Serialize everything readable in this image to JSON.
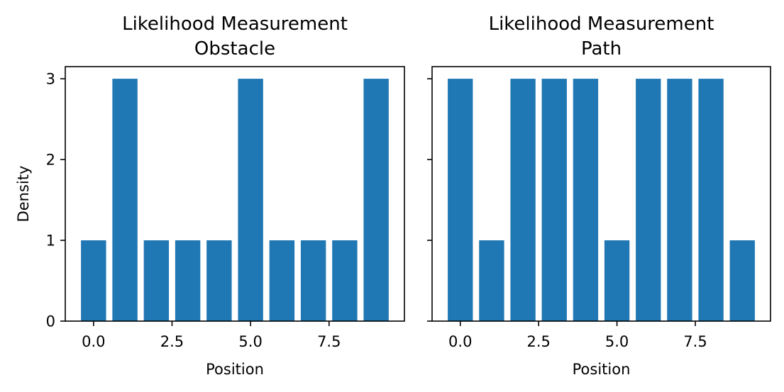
{
  "chart_data": [
    {
      "type": "bar",
      "title": "Likelihood Measurement\nObstacle",
      "xlabel": "Position",
      "ylabel": "Density",
      "x": [
        0,
        1,
        2,
        3,
        4,
        5,
        6,
        7,
        8,
        9
      ],
      "values": [
        1,
        3,
        1,
        1,
        1,
        3,
        1,
        1,
        1,
        3
      ],
      "xlim": [
        -0.9,
        9.9
      ],
      "ylim": [
        0,
        3.15
      ],
      "xticks": [
        0.0,
        2.5,
        5.0,
        7.5
      ],
      "xtick_labels": [
        "0.0",
        "2.5",
        "5.0",
        "7.5"
      ],
      "yticks": [
        0,
        1,
        2,
        3
      ],
      "ytick_labels": [
        "0",
        "1",
        "2",
        "3"
      ],
      "color": "#1f77b4",
      "grid": false
    },
    {
      "type": "bar",
      "title": "Likelihood Measurement\nPath",
      "xlabel": "Position",
      "ylabel": "",
      "x": [
        0,
        1,
        2,
        3,
        4,
        5,
        6,
        7,
        8,
        9
      ],
      "values": [
        3,
        1,
        3,
        3,
        3,
        1,
        3,
        3,
        3,
        1
      ],
      "xlim": [
        -0.9,
        9.9
      ],
      "ylim": [
        0,
        3.15
      ],
      "xticks": [
        0.0,
        2.5,
        5.0,
        7.5
      ],
      "xtick_labels": [
        "0.0",
        "2.5",
        "5.0",
        "7.5"
      ],
      "yticks": [
        0,
        1,
        2,
        3
      ],
      "ytick_labels": [],
      "color": "#1f77b4",
      "grid": false
    }
  ]
}
